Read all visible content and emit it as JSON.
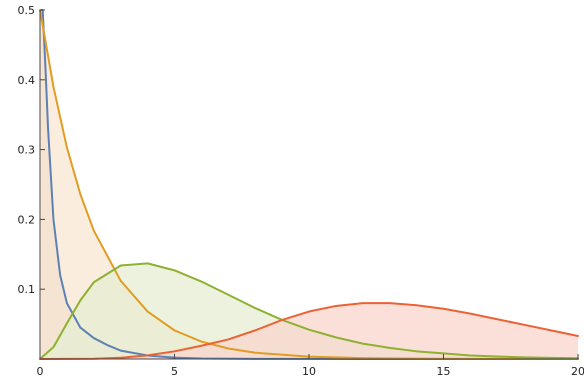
{
  "chart_data": {
    "type": "area",
    "xlim": [
      0,
      20
    ],
    "ylim": [
      0,
      0.5
    ],
    "grid": false,
    "legend": "none",
    "x_ticks": [
      {
        "value": 0,
        "label": "0"
      },
      {
        "value": 5,
        "label": "5"
      },
      {
        "value": 10,
        "label": "10"
      },
      {
        "value": 15,
        "label": "15"
      },
      {
        "value": 20,
        "label": "20"
      }
    ],
    "y_ticks": [
      {
        "value": 0.1,
        "label": "0.1"
      },
      {
        "value": 0.2,
        "label": "0.2"
      },
      {
        "value": 0.3,
        "label": "0.3"
      },
      {
        "value": 0.4,
        "label": "0.4"
      },
      {
        "value": 0.5,
        "label": "0.5"
      }
    ],
    "series": [
      {
        "color": "#5E81B5",
        "fill": "#D9CCBE",
        "x": [
          0.05,
          0.1,
          0.2,
          0.3,
          0.5,
          0.75,
          1,
          1.5,
          2,
          2.5,
          3,
          4,
          5,
          6,
          8,
          10,
          12,
          15,
          20
        ],
        "y": [
          0.5,
          0.5,
          0.42,
          0.33,
          0.2,
          0.12,
          0.08,
          0.045,
          0.03,
          0.02,
          0.012,
          0.005,
          0.002,
          0.0008,
          0.0002,
          0.0001,
          0.0,
          0.0,
          0.0
        ]
      },
      {
        "color": "#E19C24",
        "fill": "#FAE7D2",
        "x": [
          0,
          0.5,
          1,
          1.5,
          2,
          3,
          4,
          5,
          6,
          7,
          8,
          10,
          12,
          14,
          16,
          18,
          20
        ],
        "y": [
          0.5,
          0.39,
          0.303,
          0.236,
          0.184,
          0.112,
          0.068,
          0.041,
          0.025,
          0.015,
          0.009,
          0.0034,
          0.0012,
          0.0005,
          0.0002,
          0.0001,
          0.0
        ]
      },
      {
        "color": "#8FB032",
        "fill": "#E6EDD2",
        "x": [
          0,
          0.5,
          1,
          1.5,
          2,
          3,
          4,
          5,
          6,
          7,
          8,
          9,
          10,
          11,
          12,
          13,
          14,
          15,
          16,
          17,
          18,
          19,
          20
        ],
        "y": [
          0,
          0.017,
          0.051,
          0.084,
          0.11,
          0.134,
          0.137,
          0.127,
          0.111,
          0.092,
          0.073,
          0.056,
          0.042,
          0.031,
          0.022,
          0.016,
          0.011,
          0.008,
          0.005,
          0.0035,
          0.0024,
          0.0016,
          0.001
        ]
      },
      {
        "color": "#EB6235",
        "fill": "#FAD6CD",
        "x": [
          0,
          2,
          3,
          4,
          5,
          6,
          7,
          8,
          9,
          10,
          11,
          12,
          13,
          14,
          15,
          16,
          17,
          18,
          19,
          20
        ],
        "y": [
          0,
          0.0004,
          0.0018,
          0.0052,
          0.011,
          0.019,
          0.028,
          0.041,
          0.056,
          0.068,
          0.076,
          0.08,
          0.08,
          0.077,
          0.072,
          0.065,
          0.057,
          0.049,
          0.041,
          0.033
        ]
      }
    ]
  }
}
